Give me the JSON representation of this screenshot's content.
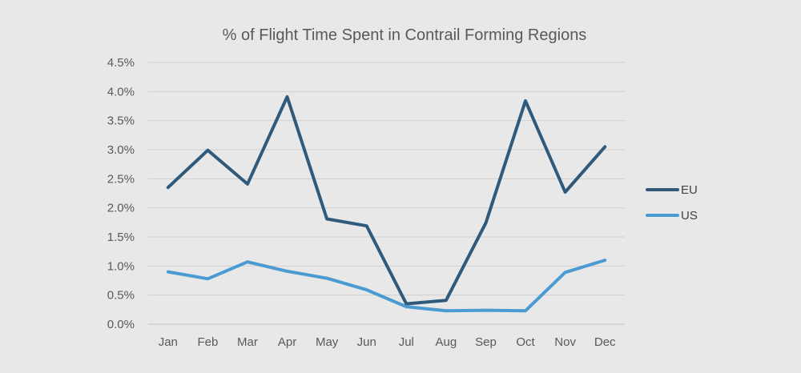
{
  "chart_data": {
    "type": "line",
    "title": "% of Flight Time Spent in Contrail Forming Regions",
    "xlabel": "",
    "ylabel": "",
    "categories": [
      "Jan",
      "Feb",
      "Mar",
      "Apr",
      "May",
      "Jun",
      "Jul",
      "Aug",
      "Sep",
      "Oct",
      "Nov",
      "Dec"
    ],
    "ylim": [
      0,
      4.5
    ],
    "yticks": [
      0,
      0.5,
      1.0,
      1.5,
      2.0,
      2.5,
      3.0,
      3.5,
      4.0,
      4.5
    ],
    "ytick_labels": [
      "0.0%",
      "0.5%",
      "1.0%",
      "1.5%",
      "2.0%",
      "2.5%",
      "3.0%",
      "3.5%",
      "4.0%",
      "4.5%"
    ],
    "grid": true,
    "legend_position": "right",
    "series": [
      {
        "name": "EU",
        "color": "#2f5a7c",
        "values": [
          2.35,
          2.99,
          2.41,
          3.91,
          1.81,
          1.69,
          0.35,
          0.41,
          1.74,
          3.84,
          2.27,
          3.05
        ]
      },
      {
        "name": "US",
        "color": "#4a9bd1",
        "values": [
          0.9,
          0.78,
          1.07,
          0.91,
          0.79,
          0.59,
          0.3,
          0.23,
          0.24,
          0.23,
          0.89,
          1.1
        ]
      }
    ]
  }
}
